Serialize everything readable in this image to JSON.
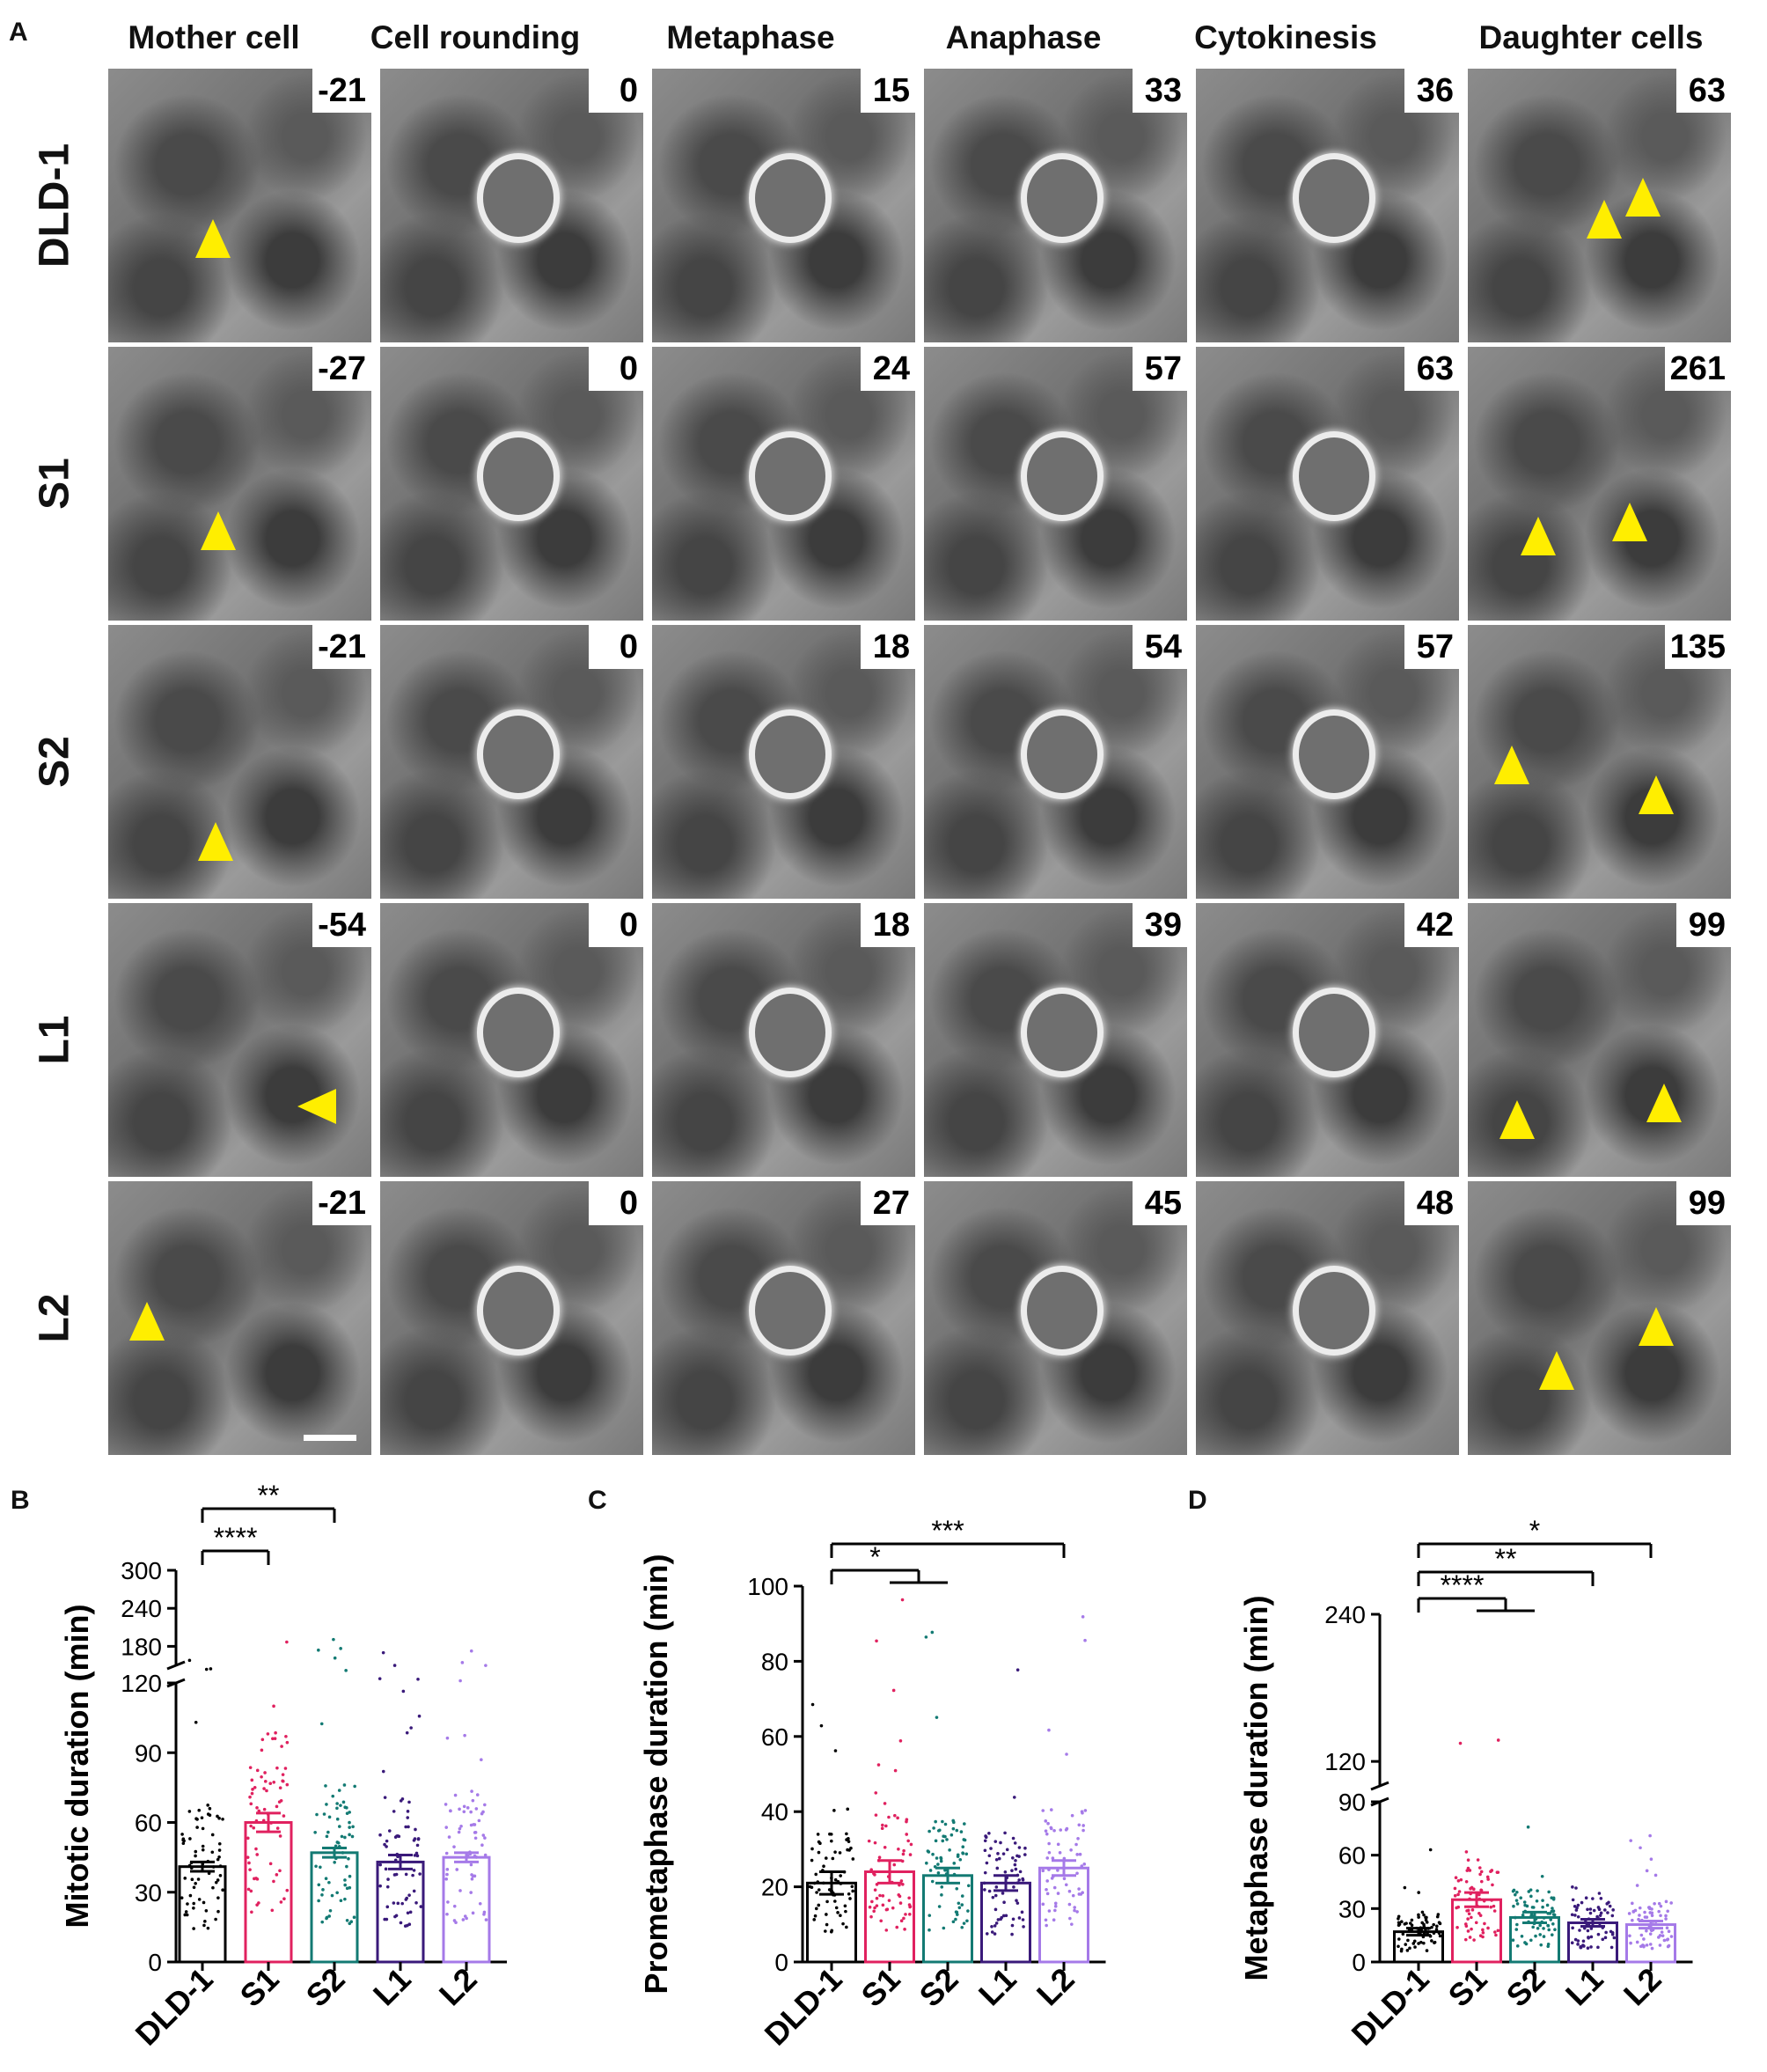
{
  "panel_letters": {
    "a": "A",
    "b": "B",
    "c": "C",
    "d": "D"
  },
  "columns": [
    "Mother cell",
    "Cell rounding",
    "Metaphase",
    "Anaphase",
    "Cytokinesis",
    "Daughter cells"
  ],
  "rows": [
    {
      "label": "DLD-1",
      "times": [
        "-21",
        "0",
        "15",
        "33",
        "36",
        "63"
      ]
    },
    {
      "label": "S1",
      "times": [
        "-27",
        "0",
        "24",
        "57",
        "63",
        "261"
      ]
    },
    {
      "label": "S2",
      "times": [
        "-21",
        "0",
        "18",
        "54",
        "57",
        "135"
      ]
    },
    {
      "label": "L1",
      "times": [
        "-54",
        "0",
        "18",
        "39",
        "42",
        "99"
      ]
    },
    {
      "label": "L2",
      "times": [
        "-21",
        "0",
        "27",
        "45",
        "48",
        "99"
      ]
    }
  ],
  "colors": {
    "DLD-1": "#000000",
    "S1": "#e0215f",
    "S2": "#137a73",
    "L1": "#3a1a7a",
    "L2": "#a57ae8",
    "arrow": "#ffee00"
  },
  "chart_data": [
    {
      "panel": "B",
      "type": "bar",
      "ylabel": "Mitotic duration (min)",
      "categories": [
        "DLD-1",
        "S1",
        "S2",
        "L1",
        "L2"
      ],
      "values": [
        41,
        60,
        47,
        43,
        45
      ],
      "sem": [
        2,
        4,
        2,
        3,
        2
      ],
      "yaxis_broken": true,
      "y_ticks_lower": [
        0,
        30,
        60,
        90,
        120
      ],
      "y_ticks_upper": [
        180,
        240,
        300
      ],
      "ylim_lower": [
        0,
        120
      ],
      "ylim_upper": [
        150,
        300
      ],
      "significance": [
        {
          "from": "DLD-1",
          "to": [
            "S1"
          ],
          "label": "****"
        },
        {
          "from": "DLD-1",
          "to": [
            "S2"
          ],
          "label": "**"
        }
      ]
    },
    {
      "panel": "C",
      "type": "bar",
      "ylabel": "Prometaphase duration (min)",
      "categories": [
        "DLD-1",
        "S1",
        "S2",
        "L1",
        "L2"
      ],
      "values": [
        21,
        24,
        23,
        21,
        25
      ],
      "sem": [
        3,
        3,
        2,
        2,
        2
      ],
      "yaxis_broken": false,
      "y_ticks": [
        0,
        20,
        40,
        60,
        80,
        100
      ],
      "ylim": [
        0,
        100
      ],
      "significance": [
        {
          "from": "DLD-1",
          "to": [
            "S1",
            "S2"
          ],
          "label": "*"
        },
        {
          "from": "DLD-1",
          "to": [
            "L2"
          ],
          "label": "***"
        }
      ]
    },
    {
      "panel": "D",
      "type": "bar",
      "ylabel": "Metaphase duration (min)",
      "categories": [
        "DLD-1",
        "S1",
        "S2",
        "L1",
        "L2"
      ],
      "values": [
        17,
        35,
        25,
        22,
        21
      ],
      "sem": [
        2,
        4,
        3,
        2,
        2
      ],
      "yaxis_broken": true,
      "y_ticks_lower": [
        0,
        30,
        60,
        90
      ],
      "y_ticks_upper": [
        120,
        240
      ],
      "ylim_lower": [
        0,
        90
      ],
      "ylim_upper": [
        100,
        240
      ],
      "significance": [
        {
          "from": "DLD-1",
          "to": [
            "S1",
            "S2"
          ],
          "label": "****"
        },
        {
          "from": "DLD-1",
          "to": [
            "L1"
          ],
          "label": "**"
        },
        {
          "from": "DLD-1",
          "to": [
            "L2"
          ],
          "label": "*"
        }
      ]
    }
  ]
}
